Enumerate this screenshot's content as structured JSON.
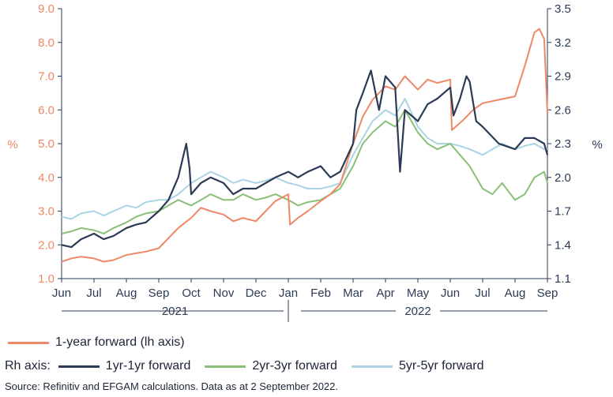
{
  "chart_data": {
    "type": "line",
    "left_axis": {
      "unit": "%",
      "ylim": [
        1.0,
        9.0
      ],
      "ticks": [
        "1.0",
        "2.0",
        "3.0",
        "4.0",
        "5.0",
        "6.0",
        "7.0",
        "8.0",
        "9.0"
      ]
    },
    "right_axis": {
      "unit": "%",
      "ylim": [
        1.1,
        3.5
      ],
      "ticks": [
        "1.1",
        "1.4",
        "1.7",
        "2.0",
        "2.3",
        "2.6",
        "2.9",
        "3.2",
        "3.5"
      ]
    },
    "x_months": [
      "Jun",
      "Jul",
      "Aug",
      "Sep",
      "Oct",
      "Nov",
      "Dec",
      "Jan",
      "Feb",
      "Mar",
      "Apr",
      "May",
      "Jun",
      "Jul",
      "Aug",
      "Sep"
    ],
    "years": [
      "2021",
      "2022"
    ],
    "series": [
      {
        "name": "1-year forward (lh axis)",
        "axis": "left",
        "color": "#ee8866",
        "x": [
          0,
          0.3,
          0.6,
          1,
          1.3,
          1.6,
          2,
          2.3,
          2.6,
          3,
          3.3,
          3.6,
          4,
          4.3,
          4.6,
          5,
          5.3,
          5.6,
          6,
          6.3,
          6.6,
          7,
          7.05,
          7.3,
          7.6,
          8,
          8.3,
          8.6,
          9,
          9.3,
          9.6,
          10,
          10.3,
          10.6,
          11,
          11.3,
          11.6,
          12,
          12.05,
          12.4,
          12.7,
          13,
          13.5,
          14,
          14.3,
          14.6,
          14.75,
          14.9,
          15
        ],
        "values": [
          1.5,
          1.6,
          1.65,
          1.6,
          1.5,
          1.55,
          1.7,
          1.75,
          1.8,
          1.9,
          2.2,
          2.5,
          2.8,
          3.1,
          3.0,
          2.9,
          2.7,
          2.8,
          2.7,
          3.0,
          3.3,
          3.5,
          2.6,
          2.8,
          3.0,
          3.3,
          3.5,
          3.8,
          5.0,
          5.8,
          6.3,
          6.7,
          6.6,
          7.0,
          6.6,
          6.9,
          6.8,
          6.9,
          5.4,
          5.7,
          6.0,
          6.2,
          6.3,
          6.4,
          7.3,
          8.3,
          8.4,
          8.1,
          5.9
        ]
      },
      {
        "name": "1yr-1yr forward",
        "axis": "right",
        "color": "#2b3a55",
        "x": [
          0,
          0.3,
          0.6,
          1,
          1.3,
          1.6,
          2,
          2.3,
          2.6,
          3,
          3.3,
          3.6,
          3.85,
          3.95,
          4,
          4.3,
          4.6,
          5,
          5.3,
          5.6,
          6,
          6.3,
          6.6,
          7,
          7.3,
          7.6,
          8,
          8.3,
          8.6,
          9,
          9.1,
          9.3,
          9.55,
          9.8,
          10,
          10.3,
          10.45,
          10.6,
          11,
          11.3,
          11.6,
          12,
          12.1,
          12.3,
          12.5,
          12.6,
          12.8,
          13,
          13.5,
          14,
          14.3,
          14.6,
          14.9,
          15
        ],
        "values": [
          1.4,
          1.38,
          1.45,
          1.5,
          1.45,
          1.48,
          1.55,
          1.58,
          1.6,
          1.7,
          1.8,
          2.0,
          2.3,
          2.08,
          1.85,
          1.95,
          2.0,
          1.95,
          1.85,
          1.9,
          1.9,
          1.95,
          2.0,
          2.05,
          2.0,
          2.05,
          2.1,
          2.0,
          2.05,
          2.3,
          2.6,
          2.75,
          2.95,
          2.6,
          2.9,
          2.8,
          2.05,
          2.6,
          2.5,
          2.65,
          2.7,
          2.8,
          2.55,
          2.7,
          2.9,
          2.85,
          2.5,
          2.45,
          2.3,
          2.25,
          2.35,
          2.35,
          2.3,
          2.2
        ]
      },
      {
        "name": "2yr-3yr forward",
        "axis": "right",
        "color": "#88c077",
        "x": [
          0,
          0.3,
          0.6,
          1,
          1.3,
          1.6,
          2,
          2.3,
          2.6,
          3,
          3.3,
          3.6,
          4,
          4.3,
          4.6,
          5,
          5.3,
          5.6,
          6,
          6.3,
          6.6,
          7,
          7.3,
          7.6,
          8,
          8.3,
          8.6,
          9,
          9.3,
          9.6,
          10,
          10.3,
          10.6,
          11,
          11.3,
          11.6,
          12,
          12.3,
          12.6,
          13,
          13.3,
          13.6,
          14,
          14.3,
          14.6,
          14.9,
          15
        ],
        "values": [
          1.5,
          1.52,
          1.55,
          1.53,
          1.5,
          1.55,
          1.6,
          1.65,
          1.68,
          1.7,
          1.75,
          1.8,
          1.75,
          1.8,
          1.85,
          1.8,
          1.8,
          1.85,
          1.8,
          1.82,
          1.85,
          1.8,
          1.75,
          1.78,
          1.8,
          1.85,
          1.9,
          2.1,
          2.3,
          2.4,
          2.5,
          2.45,
          2.6,
          2.4,
          2.3,
          2.25,
          2.3,
          2.2,
          2.1,
          1.9,
          1.85,
          1.95,
          1.8,
          1.85,
          2.0,
          2.05,
          1.95
        ]
      },
      {
        "name": "5yr-5yr forward",
        "axis": "right",
        "color": "#aad4e3",
        "x": [
          0,
          0.3,
          0.6,
          1,
          1.3,
          1.6,
          2,
          2.3,
          2.6,
          3,
          3.3,
          3.6,
          4,
          4.3,
          4.6,
          5,
          5.3,
          5.6,
          6,
          6.3,
          6.6,
          7,
          7.3,
          7.6,
          8,
          8.3,
          8.6,
          9,
          9.3,
          9.6,
          10,
          10.3,
          10.6,
          11,
          11.3,
          11.6,
          12,
          12.3,
          12.6,
          13,
          13.3,
          13.6,
          14,
          14.3,
          14.6,
          14.9,
          15
        ],
        "values": [
          1.65,
          1.63,
          1.68,
          1.7,
          1.66,
          1.7,
          1.75,
          1.73,
          1.78,
          1.8,
          1.8,
          1.85,
          1.95,
          2.0,
          2.05,
          2.0,
          1.95,
          1.98,
          1.95,
          1.97,
          2.0,
          1.95,
          1.93,
          1.9,
          1.9,
          1.92,
          1.95,
          2.2,
          2.35,
          2.5,
          2.6,
          2.55,
          2.7,
          2.45,
          2.35,
          2.3,
          2.3,
          2.28,
          2.25,
          2.2,
          2.25,
          2.3,
          2.25,
          2.28,
          2.3,
          2.25,
          2.25
        ]
      }
    ]
  },
  "legend": {
    "lh_label": "1-year forward (lh axis)",
    "rh_prefix": "Rh axis:",
    "rh_items": [
      "1yr-1yr forward",
      "2yr-3yr forward",
      "5yr-5yr forward"
    ]
  },
  "source": "Source: Refinitiv and EFGAM calculations. Data as at 2 September 2022."
}
